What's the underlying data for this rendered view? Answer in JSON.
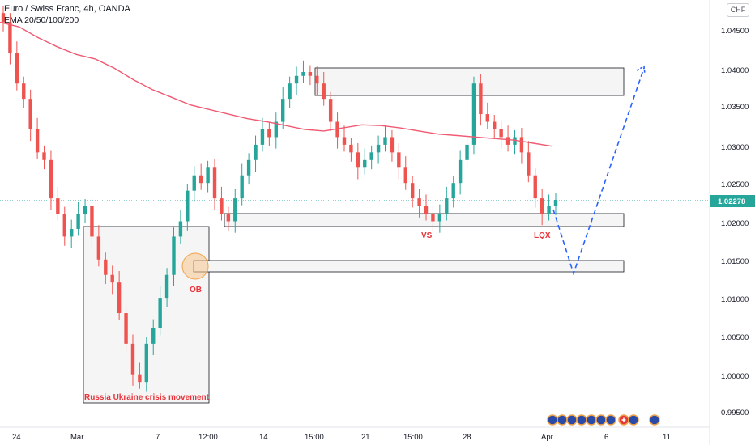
{
  "header": {
    "title": "Euro / Swiss Franc, 4h, OANDA",
    "indicator": "EMA 20/50/100/200",
    "currency": "CHF"
  },
  "colors": {
    "up": "#26a69a",
    "down": "#ef5350",
    "ema": "#f05a72",
    "projection": "#2962ff",
    "current_line": "#26a69a",
    "annotation": "#e8333a"
  },
  "current_price": "1.02278",
  "chart_data": {
    "type": "candlestick",
    "symbol": "EURCHF",
    "timeframe": "4h",
    "ylim": [
      0.9935,
      1.0475
    ],
    "y_ticks": [
      "1.04500",
      "1.04000",
      "1.03500",
      "1.03000",
      "1.02500",
      "1.02000",
      "1.01500",
      "1.01000",
      "1.00500",
      "1.00000",
      "0.99500"
    ],
    "x_ticks": [
      "24",
      "Mar",
      "7",
      "12:00",
      "14",
      "15:00",
      "21",
      "15:00",
      "28",
      "Apr",
      "6",
      "11"
    ],
    "ema_200_approx": [
      1.046,
      1.0454,
      1.044,
      1.0428,
      1.0418,
      1.0412,
      1.04,
      1.0385,
      1.0372,
      1.0362,
      1.0352,
      1.0346,
      1.034,
      1.0334,
      1.033,
      1.0325,
      1.032,
      1.0318,
      1.0322,
      1.0326,
      1.0325,
      1.0322,
      1.0318,
      1.0314,
      1.0312,
      1.031,
      1.0308,
      1.0306,
      1.0302,
      1.0298
    ],
    "candles_close_approx": [
      1.046,
      1.042,
      1.038,
      1.036,
      1.032,
      1.029,
      1.028,
      1.023,
      1.021,
      1.018,
      1.019,
      1.021,
      1.022,
      1.018,
      1.015,
      1.013,
      1.012,
      1.008,
      1.004,
      1.0,
      0.999,
      1.004,
      1.006,
      1.01,
      1.013,
      1.018,
      1.02,
      1.024,
      1.026,
      1.025,
      1.027,
      1.023,
      1.021,
      1.02,
      1.023,
      1.026,
      1.028,
      1.03,
      1.032,
      1.031,
      1.033,
      1.036,
      1.038,
      1.039,
      1.0395,
      1.039,
      1.038,
      1.036,
      1.033,
      1.031,
      1.03,
      1.029,
      1.027,
      1.028,
      1.029,
      1.03,
      1.031,
      1.029,
      1.027,
      1.025,
      1.023,
      1.022,
      1.021,
      1.02,
      1.021,
      1.023,
      1.025,
      1.028,
      1.03,
      1.038,
      1.034,
      1.033,
      1.032,
      1.031,
      1.03,
      1.031,
      1.029,
      1.026,
      1.023,
      1.021,
      1.022,
      1.0228
    ],
    "zones": [
      {
        "label": "Russia Ukraine crisis movement",
        "from": 0.997,
        "to": 1.0192
      },
      {
        "label": "OB",
        "from": 1.0137,
        "to": 1.0153
      },
      {
        "label": "VS",
        "from": 1.0192,
        "to": 1.0211
      },
      {
        "label": "",
        "from": 1.0365,
        "to": 1.0402
      }
    ],
    "annotations": [
      "Russia Ukraine crisis movement",
      "OB",
      "VS",
      "LQX"
    ],
    "projection_path": [
      1.0225,
      1.014,
      1.0133,
      1.021,
      1.04
    ]
  }
}
